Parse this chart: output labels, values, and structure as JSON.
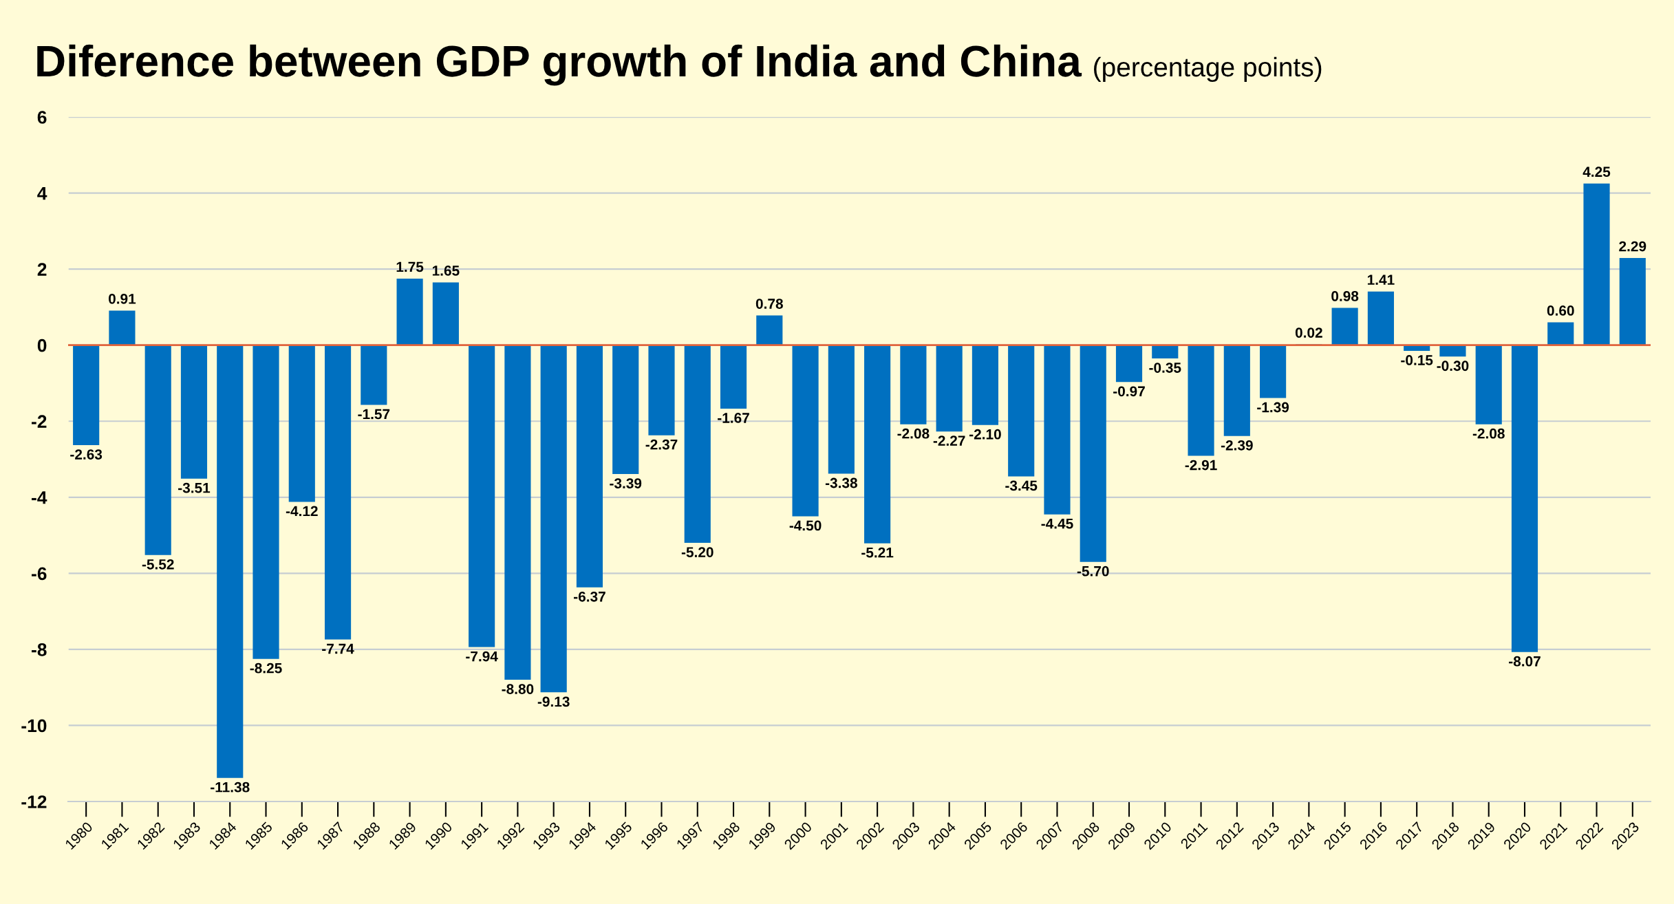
{
  "chart_data": {
    "type": "bar",
    "title": "Diference between GDP growth of India and China",
    "subtitle": "(percentage points)",
    "categories": [
      "1980",
      "1981",
      "1982",
      "1983",
      "1984",
      "1985",
      "1986",
      "1987",
      "1988",
      "1989",
      "1990",
      "1991",
      "1992",
      "1993",
      "1994",
      "1995",
      "1996",
      "1997",
      "1998",
      "1999",
      "2000",
      "2001",
      "2002",
      "2003",
      "2004",
      "2005",
      "2006",
      "2007",
      "2008",
      "2009",
      "2010",
      "2011",
      "2012",
      "2013",
      "2014",
      "2015",
      "2016",
      "2017",
      "2018",
      "2019",
      "2020",
      "2021",
      "2022",
      "2023"
    ],
    "values": [
      -2.63,
      0.91,
      -5.52,
      -3.51,
      -11.38,
      -8.25,
      -4.12,
      -7.74,
      -1.57,
      1.75,
      1.65,
      -7.94,
      -8.8,
      -9.13,
      -6.37,
      -3.39,
      -2.37,
      -5.2,
      -1.67,
      0.78,
      -4.5,
      -3.38,
      -5.21,
      -2.08,
      -2.27,
      -2.1,
      -3.45,
      -4.45,
      -5.7,
      -0.97,
      -0.35,
      -2.91,
      -2.39,
      -1.39,
      0.02,
      0.98,
      1.41,
      -0.15,
      -0.3,
      -2.08,
      -8.07,
      0.6,
      4.25,
      2.29
    ],
    "value_labels": [
      "-2.63",
      "0.91",
      "-5.52",
      "-3.51",
      "-11.38",
      "-8.25",
      "-4.12",
      "-7.74",
      "-1.57",
      "1.75",
      "1.65",
      "-7.94",
      "-8.80",
      "-9.13",
      "-6.37",
      "-3.39",
      "-2.37",
      "-5.20",
      "-1.67",
      "0.78",
      "-4.50",
      "-3.38",
      "-5.21",
      "-2.08",
      "-2.27",
      "-2.10",
      "-3.45",
      "-4.45",
      "-5.70",
      "-0.97",
      "-0.35",
      "-2.91",
      "-2.39",
      "-1.39",
      "0.02",
      "0.98",
      "1.41",
      "-0.15",
      "-0.30",
      "-2.08",
      "-8.07",
      "0.60",
      "4.25",
      "2.29"
    ],
    "color": "#0070c0",
    "ylim": [
      -12,
      6
    ],
    "yticks": [
      -12,
      -10,
      -8,
      -6,
      -4,
      -2,
      0,
      2,
      4,
      6
    ],
    "grid": "y",
    "ref_lines": [
      {
        "axis": "y",
        "value": 0,
        "color": "#e2643c"
      }
    ]
  }
}
